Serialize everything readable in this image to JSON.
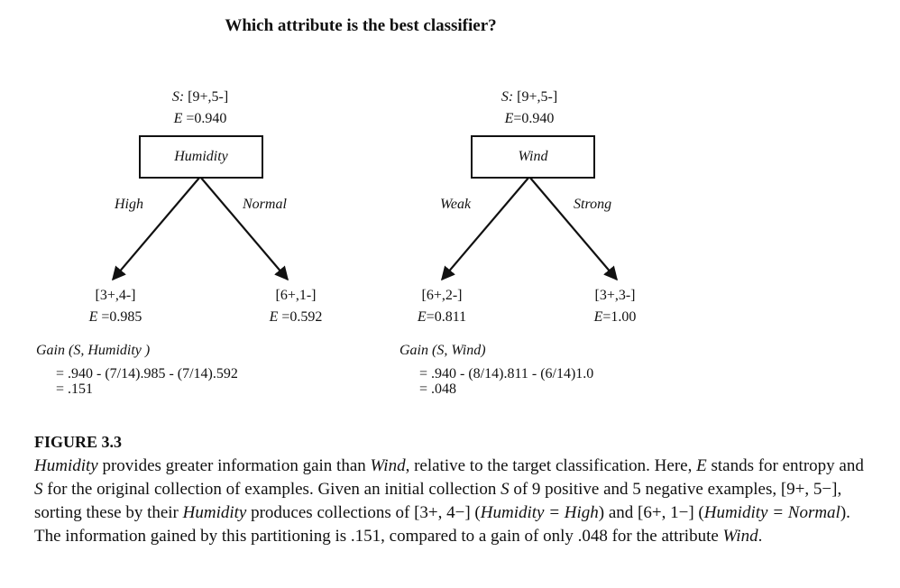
{
  "title": "Which attribute is the best classifier?",
  "trees": [
    {
      "root_set": "[9+,5-]",
      "root_set_label": "S:",
      "root_entropy": "0.940",
      "attribute": "Humidity",
      "left_edge": "High",
      "right_edge": "Normal",
      "left_set": "[3+,4-]",
      "left_entropy": "0.985",
      "right_set": "[6+,1-]",
      "right_entropy": "0.592",
      "gain_label": "Gain (S,  Humidity  )",
      "gain_calc": "= .940 - (7/14).985 - (7/14).592",
      "gain_result": "= .151"
    },
    {
      "root_set": "[9+,5-]",
      "root_set_label": "S:",
      "root_entropy": "0.940",
      "attribute": "Wind",
      "left_edge": "Weak",
      "right_edge": "Strong",
      "left_set": "[6+,2-]",
      "left_entropy": "0.811",
      "right_set": "[3+,3-]",
      "right_entropy": "1.00",
      "gain_label": "Gain (S, Wind)",
      "gain_calc": "= .940 - (8/14).811 - (6/14)1.0",
      "gain_result": "= .048"
    }
  ],
  "entropy_label": "E",
  "figure_label": "FIGURE 3.3",
  "caption": {
    "s1": "Humidity",
    "s2": " provides greater information gain than ",
    "s3": "Wind",
    "s4": ", relative to the target classification. Here, ",
    "s5": "E",
    "s6": " stands for entropy and ",
    "s7": "S",
    "s8": " for the original collection of examples. Given an initial collection ",
    "s9": "S",
    "s10": " of 9 positive and 5 negative examples, [9+, 5−], sorting these by their ",
    "s11": "Humidity",
    "s12": " produces collections of [3+, 4−] (",
    "s13": "Humidity = High",
    "s14": ") and [6+, 1−] (",
    "s15": "Humidity = Normal",
    "s16": "). The information gained by this partitioning is .151, compared to a gain of only .048 for the attribute ",
    "s17": "Wind",
    "s18": "."
  }
}
